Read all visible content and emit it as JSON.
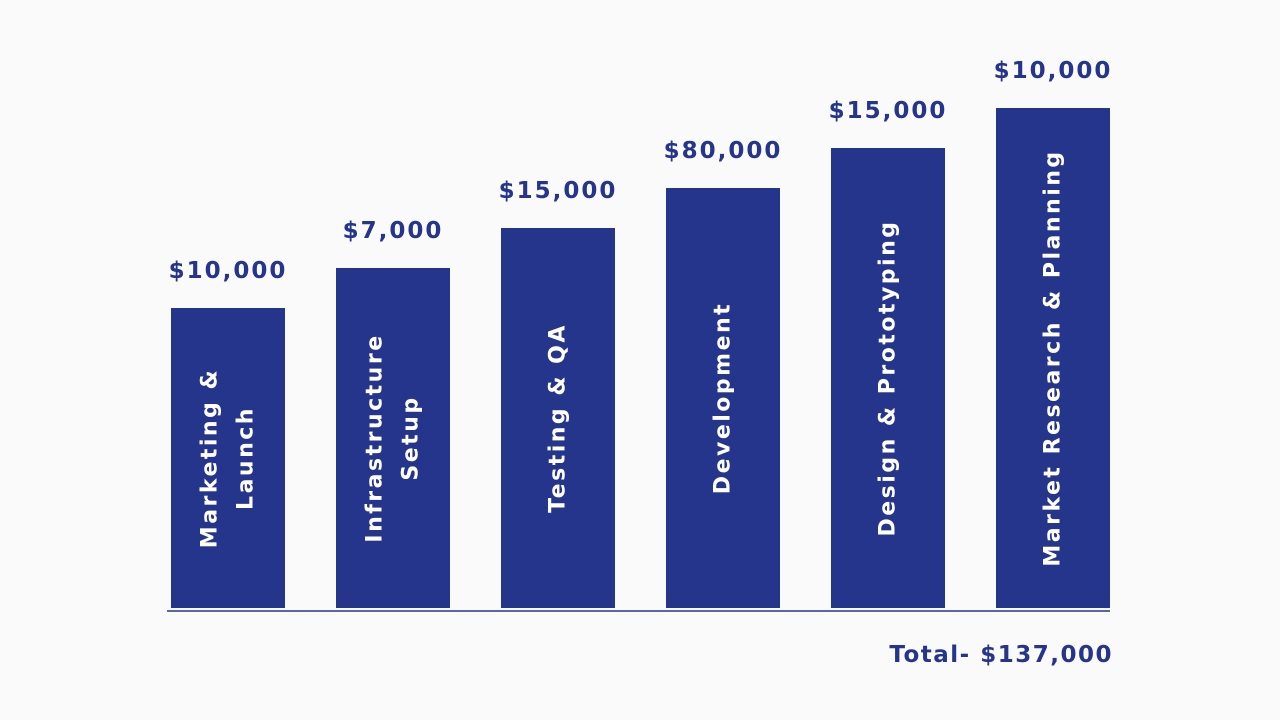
{
  "colors": {
    "bar": "#24358b",
    "text": "#24358b",
    "background": "#fafafa",
    "baseline": "#24358b"
  },
  "chart_data": {
    "type": "bar",
    "title": "",
    "xlabel": "",
    "ylabel": "",
    "categories": [
      "Marketing & Launch",
      "Infrastructure Setup",
      "Testing & QA",
      "Development",
      "Design & Prototyping",
      "Market Research & Planning"
    ],
    "category_lines": [
      [
        "Marketing &",
        "Launch"
      ],
      [
        "Infrastructure",
        "Setup"
      ],
      [
        "Testing & QA"
      ],
      [
        "Development"
      ],
      [
        "Design & Prototyping"
      ],
      [
        "Market Research & Planning"
      ]
    ],
    "values": [
      10000,
      7000,
      15000,
      80000,
      15000,
      10000
    ],
    "data_labels": [
      "$10,000",
      "$7,000",
      "$15,000",
      "$80,000",
      "$15,000",
      "$10,000"
    ],
    "total_label": "Total- $137,000",
    "grid": false,
    "legend": "none"
  }
}
